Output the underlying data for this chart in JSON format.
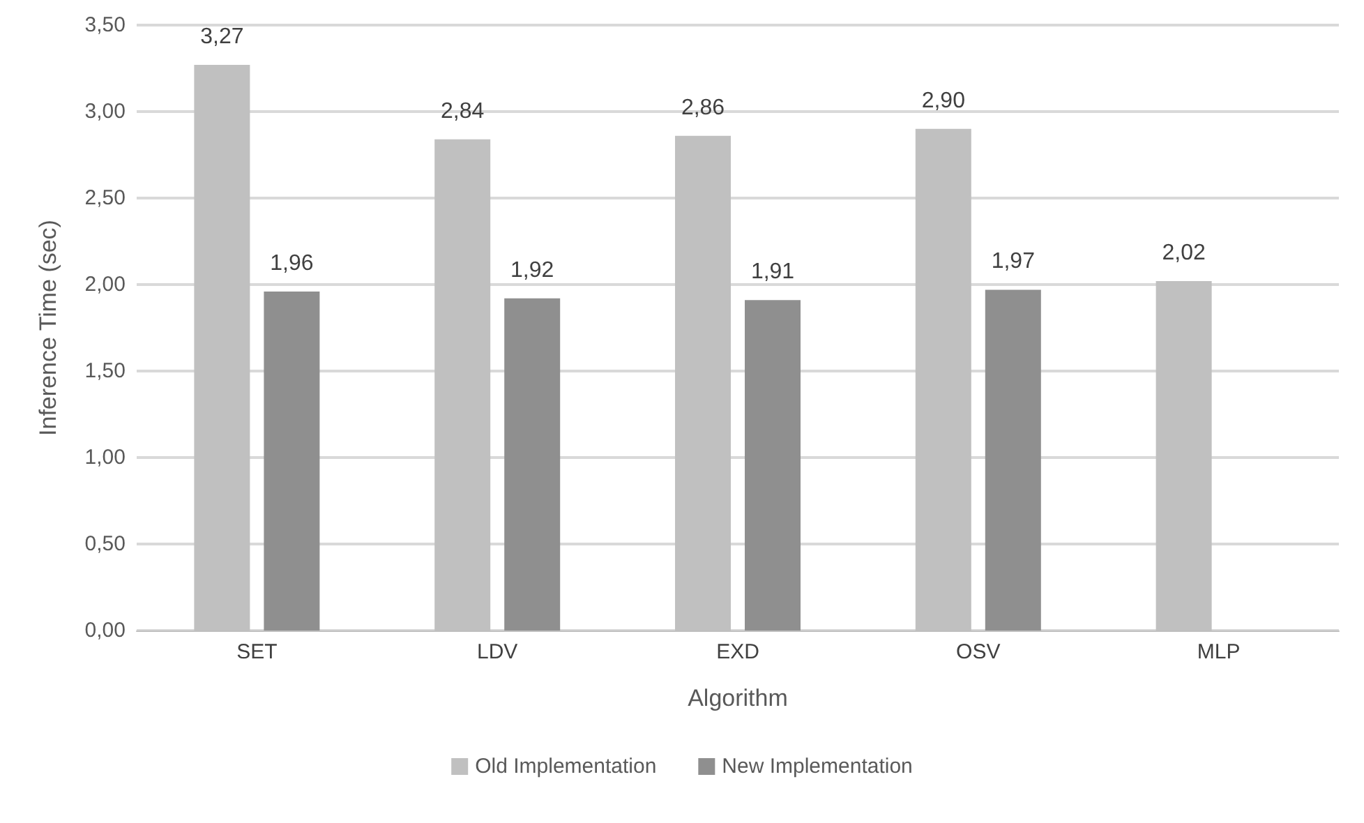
{
  "chart_data": {
    "type": "bar",
    "xlabel": "Algorithm",
    "ylabel": "Inference Time (sec)",
    "categories": [
      "SET",
      "LDV",
      "EXD",
      "OSV",
      "MLP"
    ],
    "series": [
      {
        "name": "Old Implementation",
        "color": "#c0c0c0",
        "values": [
          3.27,
          2.84,
          2.86,
          2.9,
          2.02
        ],
        "value_labels": [
          "3,27",
          "2,84",
          "2,86",
          "2,90",
          "2,02"
        ]
      },
      {
        "name": "New Implementation",
        "color": "#8f8f8f",
        "values": [
          1.96,
          1.92,
          1.91,
          1.97,
          null
        ],
        "value_labels": [
          "1,96",
          "1,92",
          "1,91",
          "1,97",
          null
        ]
      }
    ],
    "ylim": [
      0,
      3.5
    ],
    "yticks": [
      {
        "value": 0,
        "label": "0,00"
      },
      {
        "value": 0.5,
        "label": "0,50"
      },
      {
        "value": 1,
        "label": "1,00"
      },
      {
        "value": 1.5,
        "label": "1,50"
      },
      {
        "value": 2,
        "label": "2,00"
      },
      {
        "value": 2.5,
        "label": "2,50"
      },
      {
        "value": 3,
        "label": "3,00"
      },
      {
        "value": 3.5,
        "label": "3,50"
      }
    ],
    "grid": "y",
    "legend": "bottom"
  }
}
